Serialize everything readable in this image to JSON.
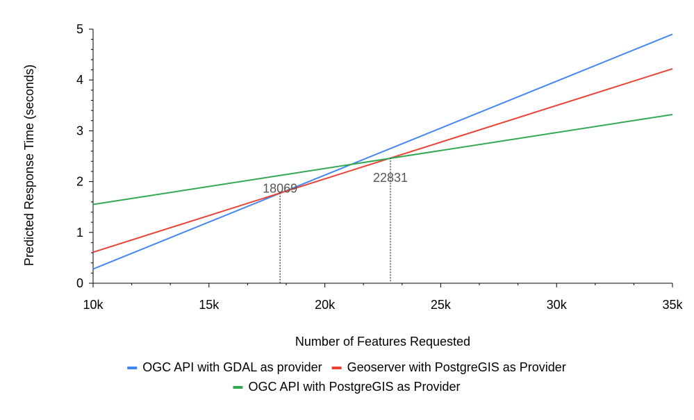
{
  "chart_data": {
    "type": "line",
    "title": "",
    "xlabel": "Number of Features Requested",
    "ylabel": "Predicted Response Time (seconds)",
    "xlim": [
      10000,
      35000
    ],
    "ylim": [
      0,
      5
    ],
    "x_ticks": [
      10000,
      15000,
      20000,
      25000,
      30000,
      35000
    ],
    "x_tick_labels": [
      "10k",
      "15k",
      "20k",
      "25k",
      "30k",
      "35k"
    ],
    "y_ticks": [
      0,
      1,
      2,
      3,
      4,
      5
    ],
    "y_tick_labels": [
      "0",
      "1",
      "2",
      "3",
      "4",
      "5"
    ],
    "grid": false,
    "legend_position": "bottom",
    "series": [
      {
        "name": "OGC API with GDAL as provider",
        "color": "#4285f4",
        "x": [
          10000,
          35000
        ],
        "y": [
          0.28,
          4.9
        ]
      },
      {
        "name": "Geoserver with PostgreGIS as Provider",
        "color": "#ea4335",
        "x": [
          10000,
          35000
        ],
        "y": [
          0.61,
          4.22
        ]
      },
      {
        "name": "OGC API with PostgreGIS as Provider",
        "color": "#34a853",
        "x": [
          10000,
          35000
        ],
        "y": [
          1.55,
          3.32
        ]
      }
    ],
    "annotations": [
      {
        "label": "18069",
        "x": 18069,
        "y": 1.78
      },
      {
        "label": "22831",
        "x": 22831,
        "y": 2.47
      }
    ]
  }
}
